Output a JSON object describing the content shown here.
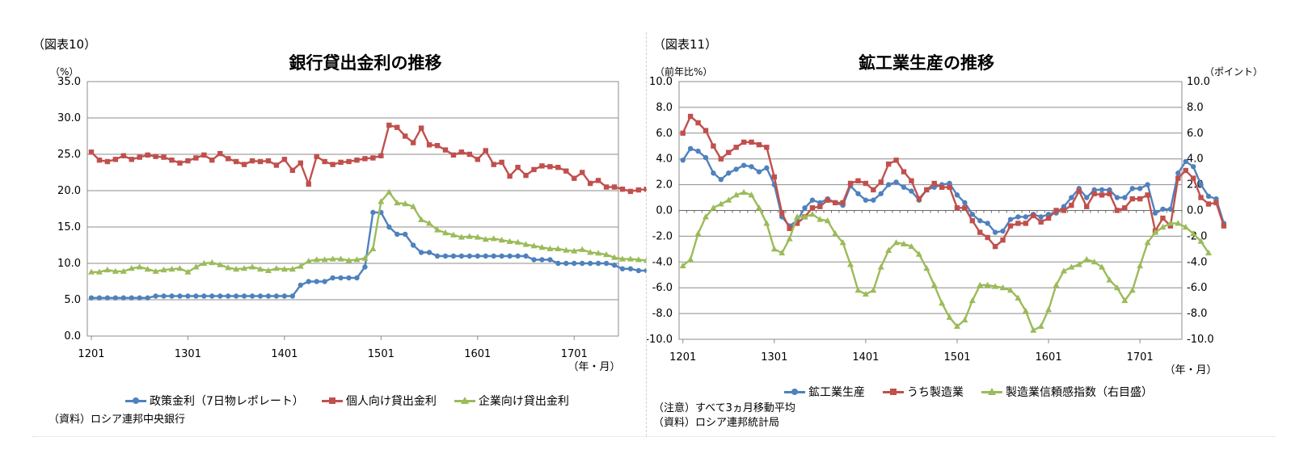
{
  "left": {
    "fig_label": "（図表10）",
    "title": "銀行貸出金利の推移",
    "unit_left": "（%）",
    "xunit": "（年・月）",
    "source": "（資料）ロシア連邦中央銀行"
  },
  "right": {
    "fig_label": "（図表11）",
    "title": "鉱工業生産の推移",
    "unit_left": "（前年比%）",
    "unit_right": "（ポイント）",
    "xunit": "（年・月）",
    "note1": "（注意）すべて3ヵ月移動平均",
    "source": "（資料）ロシア連邦統計局"
  },
  "chart_data": [
    {
      "type": "line",
      "title": "銀行貸出金利の推移",
      "ylabel": "（%）",
      "xlabel": "（年・月）",
      "ylim": [
        0,
        35
      ],
      "yticks": [
        "0.0",
        "5.0",
        "10.0",
        "15.0",
        "20.0",
        "25.0",
        "30.0",
        "35.0"
      ],
      "xticks": [
        "1201",
        "1301",
        "1401",
        "1501",
        "1601",
        "1701"
      ],
      "x_start": "1201",
      "x_end": "1706",
      "grid": true,
      "legend_position": "bottom",
      "series": [
        {
          "name": "政策金利（7日物レポレート）",
          "color": "#4f81bd",
          "marker": "circle",
          "values": [
            5.25,
            5.25,
            5.25,
            5.25,
            5.25,
            5.25,
            5.25,
            5.25,
            5.5,
            5.5,
            5.5,
            5.5,
            5.5,
            5.5,
            5.5,
            5.5,
            5.5,
            5.5,
            5.5,
            5.5,
            5.5,
            5.5,
            5.5,
            5.5,
            5.5,
            5.5,
            7.0,
            7.5,
            7.5,
            7.5,
            8.0,
            8.0,
            8.0,
            8.0,
            9.5,
            17.0,
            17.0,
            15.0,
            14.0,
            14.0,
            12.5,
            11.5,
            11.5,
            11.0,
            11.0,
            11.0,
            11.0,
            11.0,
            11.0,
            11.0,
            11.0,
            11.0,
            11.0,
            11.0,
            11.0,
            10.5,
            10.5,
            10.5,
            10.0,
            10.0,
            10.0,
            10.0,
            10.0,
            10.0,
            10.0,
            9.75,
            9.25,
            9.25,
            9.0,
            9.0,
            9.0,
            8.5,
            8.25,
            8.25,
            7.75
          ]
        },
        {
          "name": "個人向け貸出金利",
          "color": "#c0504d",
          "marker": "square",
          "values": [
            25.3,
            24.2,
            24.0,
            24.3,
            24.8,
            24.3,
            24.6,
            24.9,
            24.7,
            24.6,
            24.2,
            23.8,
            24.1,
            24.5,
            24.9,
            24.2,
            25.1,
            24.4,
            24.0,
            23.6,
            24.1,
            24.0,
            24.1,
            23.5,
            24.3,
            22.8,
            23.8,
            20.9,
            24.7,
            24.0,
            23.6,
            23.9,
            24.0,
            24.2,
            24.4,
            24.5,
            24.8,
            29.0,
            28.7,
            27.5,
            26.6,
            28.6,
            26.3,
            26.2,
            25.6,
            24.9,
            25.3,
            25.0,
            24.3,
            25.5,
            23.6,
            23.9,
            22.0,
            23.2,
            22.1,
            22.9,
            23.4,
            23.3,
            23.2,
            22.7,
            21.7,
            22.5,
            21.0,
            21.4,
            20.5,
            20.5,
            20.2,
            19.9,
            20.1,
            20.2,
            20.0,
            19.9,
            18.4,
            19.0
          ]
        },
        {
          "name": "企業向け貸出金利",
          "color": "#9bbb59",
          "marker": "triangle",
          "values": [
            8.8,
            8.8,
            9.1,
            8.9,
            8.9,
            9.3,
            9.5,
            9.2,
            8.9,
            9.1,
            9.2,
            9.3,
            8.8,
            9.5,
            10.0,
            10.1,
            9.8,
            9.4,
            9.2,
            9.3,
            9.5,
            9.2,
            9.0,
            9.3,
            9.2,
            9.2,
            9.6,
            10.3,
            10.5,
            10.5,
            10.6,
            10.6,
            10.4,
            10.5,
            10.7,
            12.0,
            18.5,
            19.8,
            18.3,
            18.2,
            17.8,
            16.0,
            15.5,
            14.6,
            14.2,
            13.9,
            13.6,
            13.7,
            13.6,
            13.3,
            13.4,
            13.2,
            13.0,
            12.9,
            12.6,
            12.4,
            12.2,
            12.0,
            12.0,
            11.8,
            11.7,
            11.9,
            11.5,
            11.4,
            11.2,
            10.8,
            10.6,
            10.6,
            10.5,
            10.4,
            10.0,
            9.8,
            9.7
          ]
        }
      ]
    },
    {
      "type": "line",
      "title": "鉱工業生産の推移",
      "ylabel": "（前年比%）",
      "y2label": "（ポイント）",
      "xlabel": "（年・月）",
      "ylim": [
        -10,
        10
      ],
      "y2lim": [
        -10,
        10
      ],
      "yticks": [
        "-10.0",
        "-8.0",
        "-6.0",
        "-4.0",
        "-2.0",
        "0.0",
        "2.0",
        "4.0",
        "6.0",
        "8.0",
        "10.0"
      ],
      "xticks": [
        "1201",
        "1301",
        "1401",
        "1501",
        "1601",
        "1701"
      ],
      "x_start": "1201",
      "x_end": "1706",
      "grid": true,
      "legend_position": "bottom",
      "series": [
        {
          "name": "鉱工業生産",
          "color": "#4f81bd",
          "marker": "circle",
          "axis": "left",
          "values": [
            3.9,
            4.8,
            4.6,
            4.1,
            2.9,
            2.4,
            2.9,
            3.2,
            3.5,
            3.4,
            3.0,
            3.3,
            2.0,
            -0.5,
            -1.2,
            -0.8,
            0.2,
            0.8,
            0.6,
            0.9,
            0.6,
            0.4,
            1.9,
            1.3,
            0.8,
            0.8,
            1.3,
            2.0,
            2.2,
            1.8,
            1.5,
            0.8,
            1.6,
            1.8,
            2.0,
            2.1,
            1.2,
            0.6,
            -0.3,
            -0.8,
            -1.0,
            -1.7,
            -1.6,
            -0.7,
            -0.5,
            -0.5,
            -0.3,
            -0.5,
            -0.3,
            -0.2,
            0.3,
            1.0,
            1.7,
            1.0,
            1.6,
            1.6,
            1.6,
            1.0,
            1.0,
            1.7,
            1.7,
            2.0,
            -0.2,
            0.1,
            0.1,
            2.9,
            3.8,
            3.4,
            2.0,
            1.1,
            0.9,
            -1.0
          ]
        },
        {
          "name": "うち製造業",
          "color": "#c0504d",
          "marker": "square",
          "axis": "left",
          "values": [
            6.0,
            7.3,
            6.8,
            6.2,
            5.0,
            4.0,
            4.5,
            4.9,
            5.3,
            5.3,
            5.1,
            4.9,
            2.6,
            -0.2,
            -1.4,
            -1.0,
            -0.5,
            0.2,
            0.3,
            0.8,
            0.6,
            0.6,
            2.1,
            2.3,
            2.1,
            1.6,
            2.2,
            3.6,
            3.9,
            3.0,
            2.3,
            0.9,
            1.6,
            2.1,
            1.8,
            1.8,
            0.2,
            0.2,
            -0.8,
            -1.7,
            -2.1,
            -2.8,
            -2.3,
            -1.2,
            -1.0,
            -1.0,
            -0.4,
            -0.9,
            -0.6,
            0.0,
            0.0,
            0.4,
            1.5,
            0.3,
            1.3,
            1.2,
            1.3,
            0.0,
            0.2,
            0.9,
            0.9,
            1.2,
            -1.6,
            -0.6,
            -1.2,
            2.5,
            3.1,
            2.5,
            1.0,
            0.5,
            0.6,
            -1.2
          ]
        },
        {
          "name": "製造業信頼感指数（右目盛）",
          "color": "#9bbb59",
          "marker": "triangle",
          "axis": "right",
          "values": [
            -4.3,
            -3.8,
            -1.8,
            -0.5,
            0.2,
            0.5,
            0.8,
            1.2,
            1.4,
            1.2,
            0.2,
            -1.0,
            -3.0,
            -3.3,
            -2.2,
            -0.5,
            -0.5,
            -0.3,
            -0.7,
            -0.8,
            -1.8,
            -2.5,
            -4.2,
            -6.2,
            -6.5,
            -6.2,
            -4.4,
            -3.1,
            -2.5,
            -2.6,
            -2.8,
            -3.4,
            -4.5,
            -5.8,
            -7.2,
            -8.3,
            -9.0,
            -8.5,
            -7.0,
            -5.8,
            -5.8,
            -5.9,
            -6.0,
            -6.2,
            -6.8,
            -7.8,
            -9.3,
            -9.0,
            -7.7,
            -5.8,
            -4.7,
            -4.4,
            -4.2,
            -3.8,
            -4.0,
            -4.4,
            -5.4,
            -6.0,
            -7.0,
            -6.2,
            -4.3,
            -2.5,
            -1.7,
            -1.3,
            -1.0,
            -1.0,
            -1.3,
            -1.8,
            -2.4,
            -3.3
          ]
        }
      ]
    }
  ]
}
